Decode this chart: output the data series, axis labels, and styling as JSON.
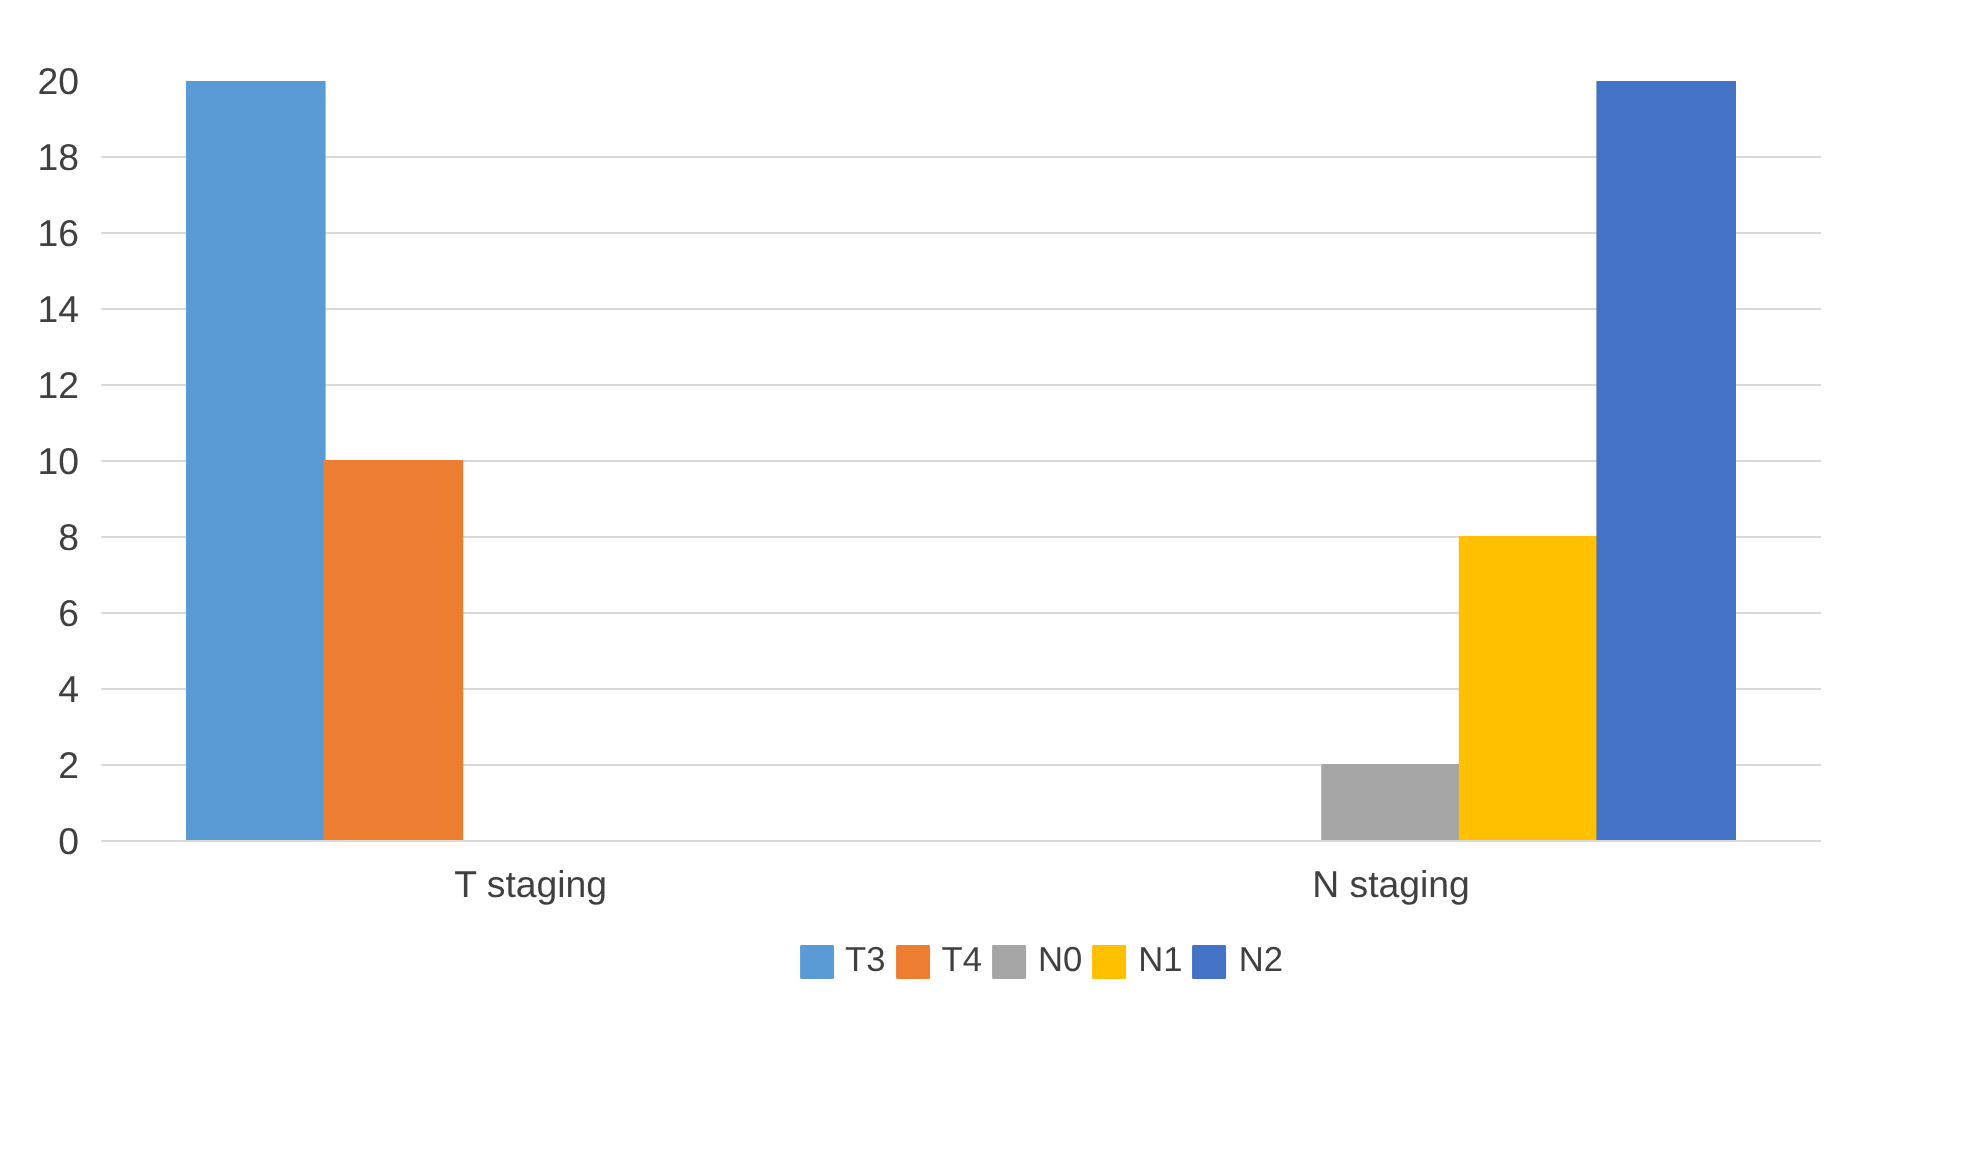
{
  "chart_data": {
    "type": "bar",
    "categories": [
      "T staging",
      "N staging"
    ],
    "series": [
      {
        "name": "T3",
        "color": "#5b9bd5",
        "values": [
          20,
          null
        ]
      },
      {
        "name": "T4",
        "color": "#ed7d31",
        "values": [
          10,
          null
        ]
      },
      {
        "name": "N0",
        "color": "#a5a5a5",
        "values": [
          null,
          2
        ]
      },
      {
        "name": "N1",
        "color": "#ffc000",
        "values": [
          null,
          8
        ]
      },
      {
        "name": "N2",
        "color": "#4472c4",
        "values": [
          null,
          20
        ]
      }
    ],
    "ylim": [
      0,
      20
    ],
    "yticks": [
      0,
      2,
      4,
      6,
      8,
      10,
      12,
      14,
      16,
      18,
      20
    ],
    "grid": "y",
    "legend": "bottom"
  }
}
